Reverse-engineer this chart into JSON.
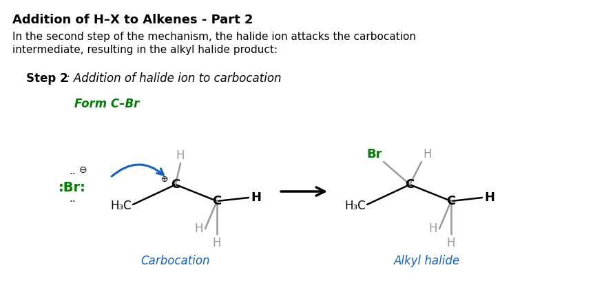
{
  "title": "Addition of H–X to Alkenes - Part 2",
  "body_text_1": "In the second step of the mechanism, the halide ion attacks the carbocation",
  "body_text_2": "intermediate, resulting in the alkyl halide product:",
  "step_bold": "Step 2",
  "step_italic": ": Addition of halide ion to carbocation",
  "form_label": "Form C–Br",
  "form_label_color": "#008000",
  "carbocation_label": "Carbocation",
  "carbocation_label_color": "#1560BD",
  "alkyl_halide_label": "Alkyl halide",
  "alkyl_halide_label_color": "#1560BD",
  "background_color": "#ffffff",
  "text_color": "#000000",
  "gray_color": "#999999",
  "green_color": "#008000",
  "blue_arrow_color": "#1560BD"
}
